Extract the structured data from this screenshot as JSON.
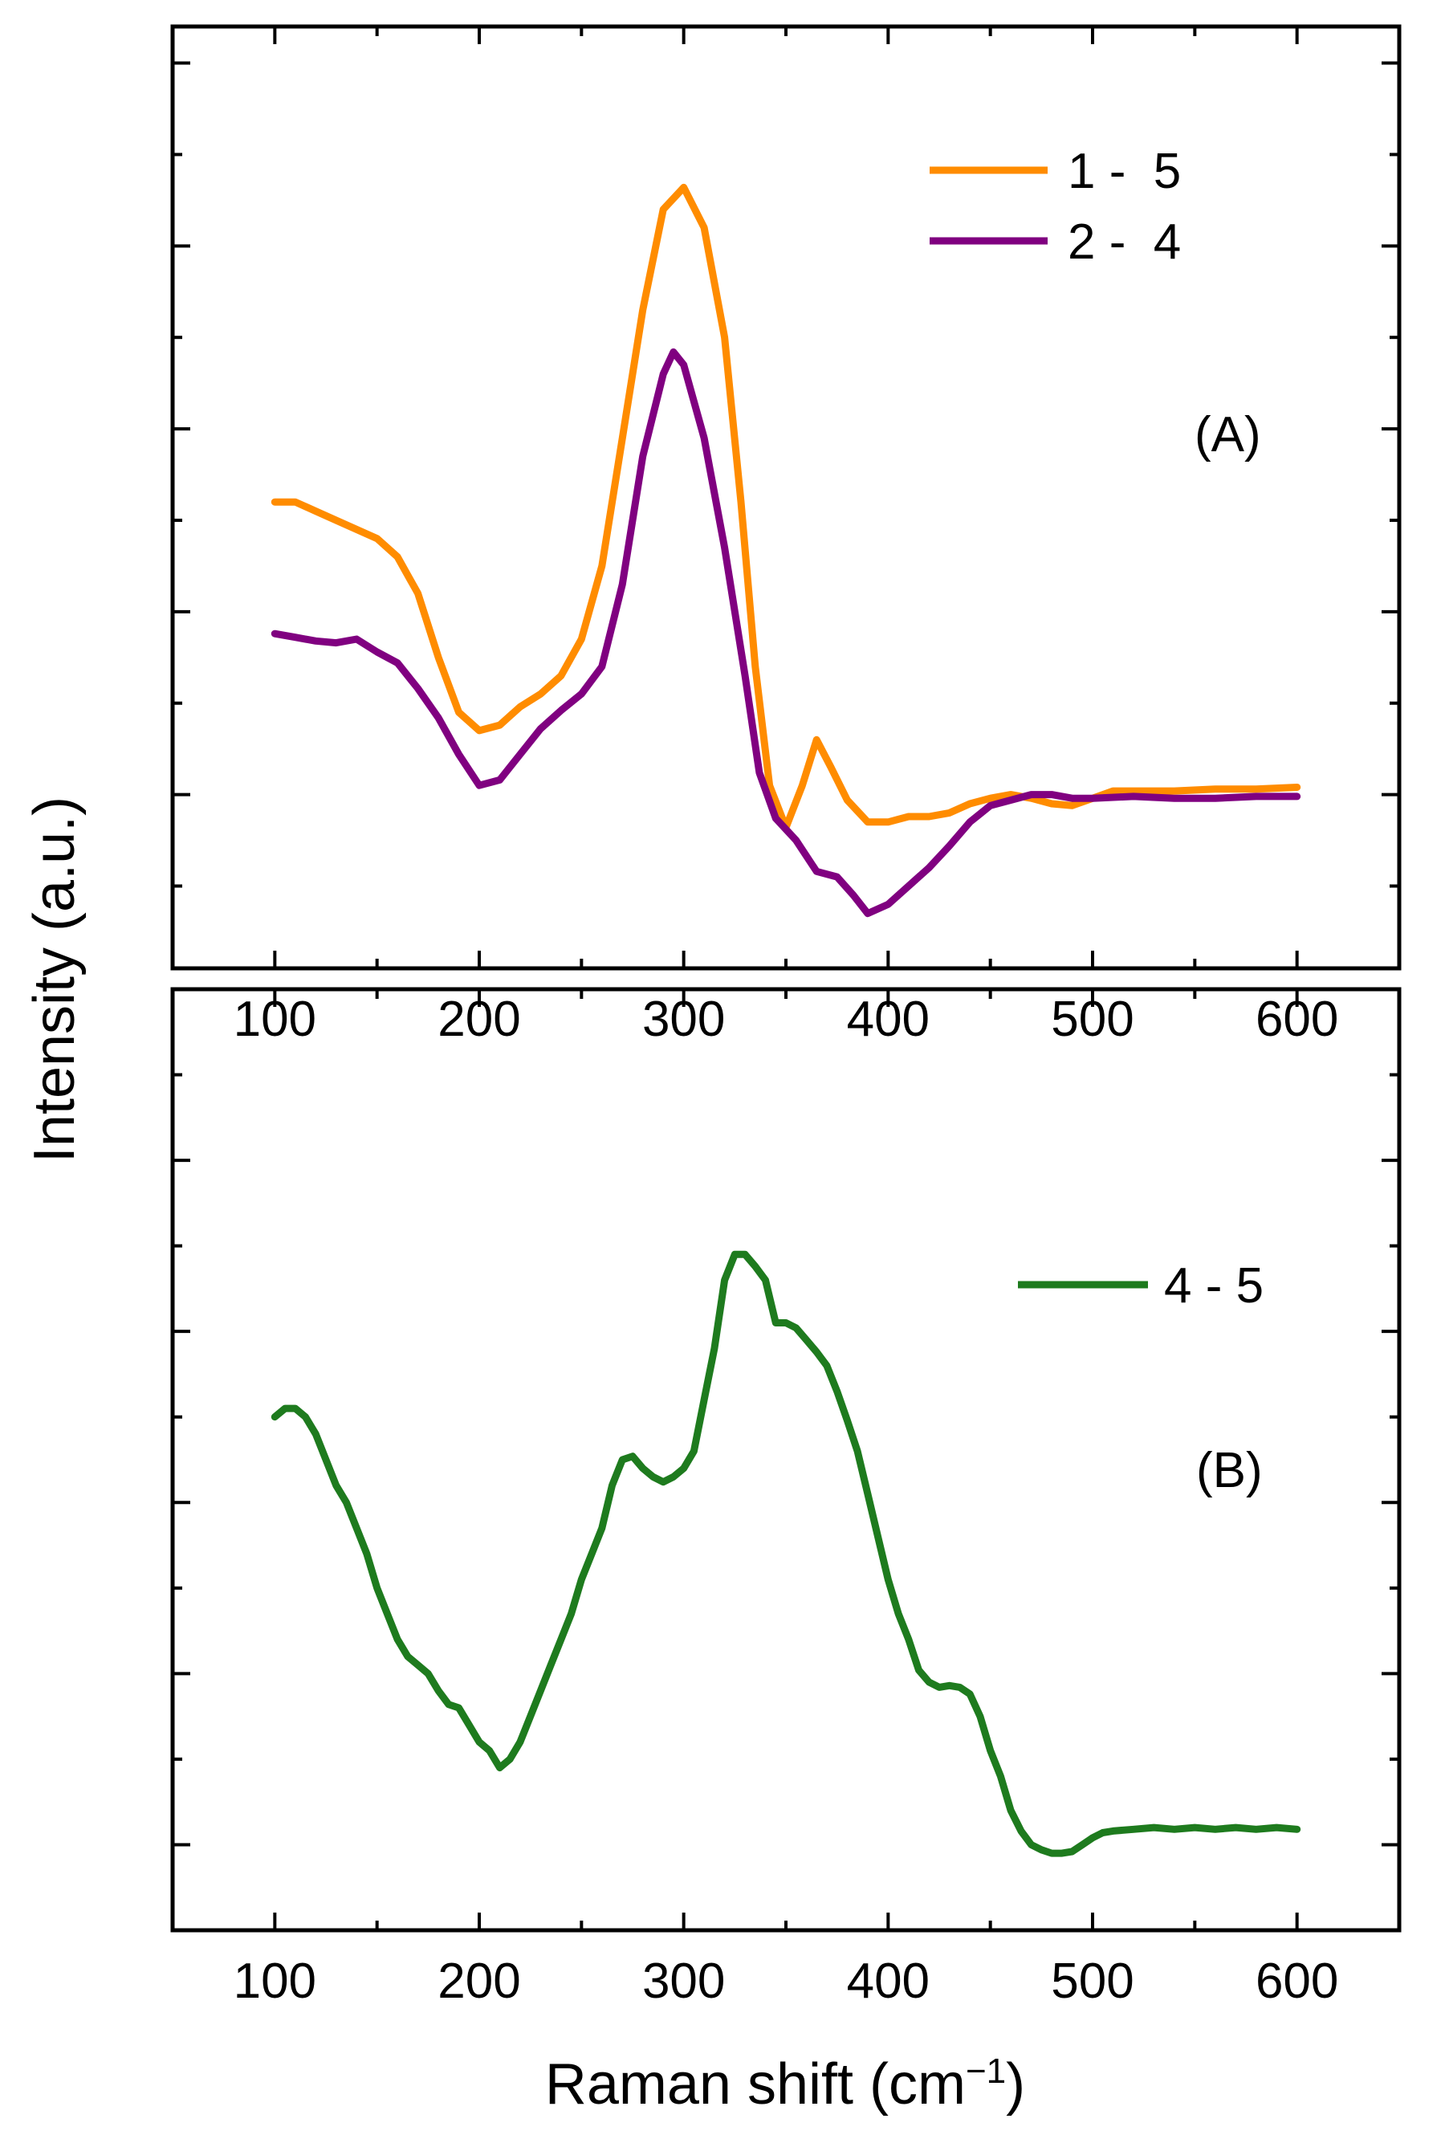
{
  "chart_data": {
    "type": "line",
    "ylabel": "Intensity (a.u.)",
    "xlabel": "Raman shift (cm",
    "xlabel_sup": "−1",
    "xlabel_close": ")",
    "colors": {
      "s15": "#FF8C00",
      "s24": "#800080",
      "s45": "#1E7B1E"
    },
    "panels": [
      {
        "id": "A",
        "label": "(A)",
        "xlim": [
          50,
          650
        ],
        "ylim": [
          -0.95,
          4.2
        ],
        "xticks": [
          "100",
          "200",
          "300",
          "400",
          "500",
          "600"
        ],
        "y_tick_labels": false,
        "legend_position": "top-right",
        "series": [
          {
            "name": "1 -  5",
            "color_key": "s15",
            "points": [
              [
                100,
                1.6
              ],
              [
                110,
                1.6
              ],
              [
                120,
                1.55
              ],
              [
                130,
                1.5
              ],
              [
                140,
                1.45
              ],
              [
                150,
                1.4
              ],
              [
                160,
                1.3
              ],
              [
                170,
                1.1
              ],
              [
                180,
                0.75
              ],
              [
                190,
                0.45
              ],
              [
                200,
                0.35
              ],
              [
                210,
                0.38
              ],
              [
                220,
                0.48
              ],
              [
                230,
                0.55
              ],
              [
                240,
                0.65
              ],
              [
                250,
                0.85
              ],
              [
                260,
                1.25
              ],
              [
                270,
                1.95
              ],
              [
                280,
                2.65
              ],
              [
                290,
                3.2
              ],
              [
                300,
                3.32
              ],
              [
                310,
                3.1
              ],
              [
                320,
                2.5
              ],
              [
                328,
                1.6
              ],
              [
                335,
                0.7
              ],
              [
                342,
                0.05
              ],
              [
                350,
                -0.18
              ],
              [
                358,
                0.05
              ],
              [
                365,
                0.3
              ],
              [
                372,
                0.15
              ],
              [
                380,
                -0.03
              ],
              [
                390,
                -0.15
              ],
              [
                400,
                -0.15
              ],
              [
                410,
                -0.12
              ],
              [
                420,
                -0.12
              ],
              [
                430,
                -0.1
              ],
              [
                440,
                -0.05
              ],
              [
                450,
                -0.02
              ],
              [
                460,
                0.0
              ],
              [
                470,
                -0.02
              ],
              [
                480,
                -0.05
              ],
              [
                490,
                -0.06
              ],
              [
                500,
                -0.02
              ],
              [
                510,
                0.02
              ],
              [
                520,
                0.02
              ],
              [
                540,
                0.02
              ],
              [
                560,
                0.03
              ],
              [
                580,
                0.03
              ],
              [
                600,
                0.04
              ]
            ]
          },
          {
            "name": "2 -  4",
            "color_key": "s24",
            "points": [
              [
                100,
                0.88
              ],
              [
                110,
                0.86
              ],
              [
                120,
                0.84
              ],
              [
                130,
                0.83
              ],
              [
                140,
                0.85
              ],
              [
                150,
                0.78
              ],
              [
                160,
                0.72
              ],
              [
                170,
                0.58
              ],
              [
                180,
                0.42
              ],
              [
                190,
                0.22
              ],
              [
                200,
                0.05
              ],
              [
                210,
                0.08
              ],
              [
                220,
                0.22
              ],
              [
                230,
                0.36
              ],
              [
                240,
                0.46
              ],
              [
                250,
                0.55
              ],
              [
                260,
                0.7
              ],
              [
                270,
                1.15
              ],
              [
                280,
                1.85
              ],
              [
                290,
                2.3
              ],
              [
                295,
                2.42
              ],
              [
                300,
                2.35
              ],
              [
                310,
                1.95
              ],
              [
                320,
                1.35
              ],
              [
                330,
                0.65
              ],
              [
                337,
                0.12
              ],
              [
                345,
                -0.13
              ],
              [
                355,
                -0.25
              ],
              [
                365,
                -0.42
              ],
              [
                375,
                -0.45
              ],
              [
                383,
                -0.55
              ],
              [
                390,
                -0.65
              ],
              [
                400,
                -0.6
              ],
              [
                410,
                -0.5
              ],
              [
                420,
                -0.4
              ],
              [
                430,
                -0.28
              ],
              [
                440,
                -0.15
              ],
              [
                450,
                -0.06
              ],
              [
                460,
                -0.03
              ],
              [
                470,
                0.0
              ],
              [
                480,
                0.0
              ],
              [
                490,
                -0.02
              ],
              [
                500,
                -0.02
              ],
              [
                520,
                -0.01
              ],
              [
                540,
                -0.02
              ],
              [
                560,
                -0.02
              ],
              [
                580,
                -0.01
              ],
              [
                600,
                -0.01
              ]
            ]
          }
        ]
      },
      {
        "id": "B",
        "label": "(B)",
        "xlim": [
          50,
          650
        ],
        "ylim": [
          -0.5,
          5.0
        ],
        "xticks": [
          "100",
          "200",
          "300",
          "400",
          "500",
          "600"
        ],
        "y_tick_labels": false,
        "legend_position": "top-right",
        "series": [
          {
            "name": "4 - 5",
            "color_key": "s45",
            "points": [
              [
                100,
                2.5
              ],
              [
                105,
                2.55
              ],
              [
                110,
                2.55
              ],
              [
                115,
                2.5
              ],
              [
                120,
                2.4
              ],
              [
                125,
                2.25
              ],
              [
                130,
                2.1
              ],
              [
                135,
                2.0
              ],
              [
                140,
                1.85
              ],
              [
                145,
                1.7
              ],
              [
                150,
                1.5
              ],
              [
                155,
                1.35
              ],
              [
                160,
                1.2
              ],
              [
                165,
                1.1
              ],
              [
                170,
                1.05
              ],
              [
                175,
                1.0
              ],
              [
                180,
                0.9
              ],
              [
                185,
                0.82
              ],
              [
                190,
                0.8
              ],
              [
                195,
                0.7
              ],
              [
                200,
                0.6
              ],
              [
                205,
                0.55
              ],
              [
                210,
                0.45
              ],
              [
                215,
                0.5
              ],
              [
                220,
                0.6
              ],
              [
                225,
                0.75
              ],
              [
                230,
                0.9
              ],
              [
                235,
                1.05
              ],
              [
                240,
                1.2
              ],
              [
                245,
                1.35
              ],
              [
                250,
                1.55
              ],
              [
                255,
                1.7
              ],
              [
                260,
                1.85
              ],
              [
                265,
                2.1
              ],
              [
                270,
                2.25
              ],
              [
                275,
                2.27
              ],
              [
                280,
                2.2
              ],
              [
                285,
                2.15
              ],
              [
                290,
                2.12
              ],
              [
                295,
                2.15
              ],
              [
                300,
                2.2
              ],
              [
                305,
                2.3
              ],
              [
                310,
                2.6
              ],
              [
                315,
                2.9
              ],
              [
                320,
                3.3
              ],
              [
                325,
                3.45
              ],
              [
                330,
                3.45
              ],
              [
                335,
                3.38
              ],
              [
                340,
                3.3
              ],
              [
                345,
                3.05
              ],
              [
                350,
                3.05
              ],
              [
                355,
                3.02
              ],
              [
                360,
                2.95
              ],
              [
                365,
                2.88
              ],
              [
                370,
                2.8
              ],
              [
                375,
                2.65
              ],
              [
                380,
                2.48
              ],
              [
                385,
                2.3
              ],
              [
                390,
                2.05
              ],
              [
                395,
                1.8
              ],
              [
                400,
                1.55
              ],
              [
                405,
                1.35
              ],
              [
                410,
                1.2
              ],
              [
                415,
                1.02
              ],
              [
                420,
                0.95
              ],
              [
                425,
                0.92
              ],
              [
                430,
                0.93
              ],
              [
                435,
                0.92
              ],
              [
                440,
                0.88
              ],
              [
                445,
                0.75
              ],
              [
                450,
                0.55
              ],
              [
                455,
                0.4
              ],
              [
                460,
                0.2
              ],
              [
                465,
                0.08
              ],
              [
                470,
                0.0
              ],
              [
                475,
                -0.03
              ],
              [
                480,
                -0.05
              ],
              [
                485,
                -0.05
              ],
              [
                490,
                -0.04
              ],
              [
                495,
                0.0
              ],
              [
                500,
                0.04
              ],
              [
                505,
                0.07
              ],
              [
                510,
                0.08
              ],
              [
                520,
                0.09
              ],
              [
                530,
                0.1
              ],
              [
                540,
                0.09
              ],
              [
                550,
                0.1
              ],
              [
                560,
                0.09
              ],
              [
                570,
                0.1
              ],
              [
                580,
                0.09
              ],
              [
                590,
                0.1
              ],
              [
                600,
                0.09
              ]
            ]
          }
        ]
      }
    ]
  }
}
